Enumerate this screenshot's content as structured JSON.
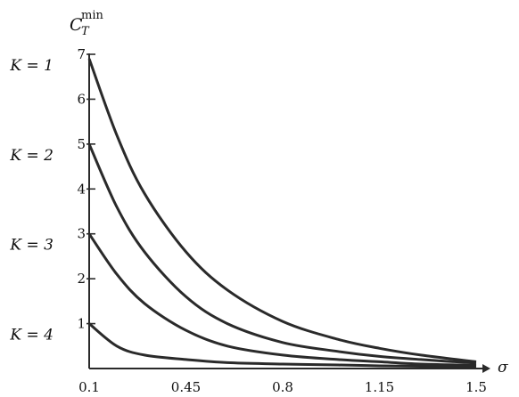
{
  "chart_data": {
    "type": "line",
    "ylabel_main": "C",
    "ylabel_sub": "T",
    "ylabel_sup": "min",
    "xlabel": "σ",
    "x_ticks": [
      "0.1",
      "0.45",
      "0.8",
      "1.15",
      "1.5"
    ],
    "y_ticks": [
      "1",
      "2",
      "3",
      "4",
      "5",
      "6",
      "7"
    ],
    "xlim": [
      0.1,
      1.5
    ],
    "ylim": [
      0,
      7
    ],
    "line_color": "#2a2a2a",
    "series_labels": [
      {
        "text": "K = 1",
        "y": 7
      },
      {
        "text": "K = 2",
        "y": 5
      },
      {
        "text": "K = 3",
        "y": 3
      },
      {
        "text": "K = 4",
        "y": 1
      }
    ],
    "series": [
      {
        "name": "K = 1",
        "x": [
          0.1,
          0.2,
          0.3,
          0.45,
          0.6,
          0.8,
          1.0,
          1.15,
          1.3,
          1.5
        ],
        "values": [
          6.9,
          5.2,
          3.9,
          2.6,
          1.75,
          1.05,
          0.65,
          0.45,
          0.3,
          0.15
        ]
      },
      {
        "name": "K = 2",
        "x": [
          0.1,
          0.2,
          0.3,
          0.45,
          0.6,
          0.8,
          1.0,
          1.15,
          1.3,
          1.5
        ],
        "values": [
          5.0,
          3.6,
          2.6,
          1.6,
          1.0,
          0.58,
          0.38,
          0.27,
          0.2,
          0.12
        ]
      },
      {
        "name": "K = 3",
        "x": [
          0.1,
          0.2,
          0.3,
          0.45,
          0.6,
          0.8,
          1.0,
          1.15,
          1.3,
          1.5
        ],
        "values": [
          3.0,
          2.1,
          1.45,
          0.85,
          0.5,
          0.3,
          0.2,
          0.15,
          0.1,
          0.07
        ]
      },
      {
        "name": "K = 4",
        "x": [
          0.1,
          0.2,
          0.3,
          0.45,
          0.6,
          0.8,
          1.0,
          1.15,
          1.3,
          1.5
        ],
        "values": [
          1.0,
          0.5,
          0.3,
          0.2,
          0.13,
          0.1,
          0.08,
          0.06,
          0.05,
          0.04
        ]
      }
    ]
  }
}
